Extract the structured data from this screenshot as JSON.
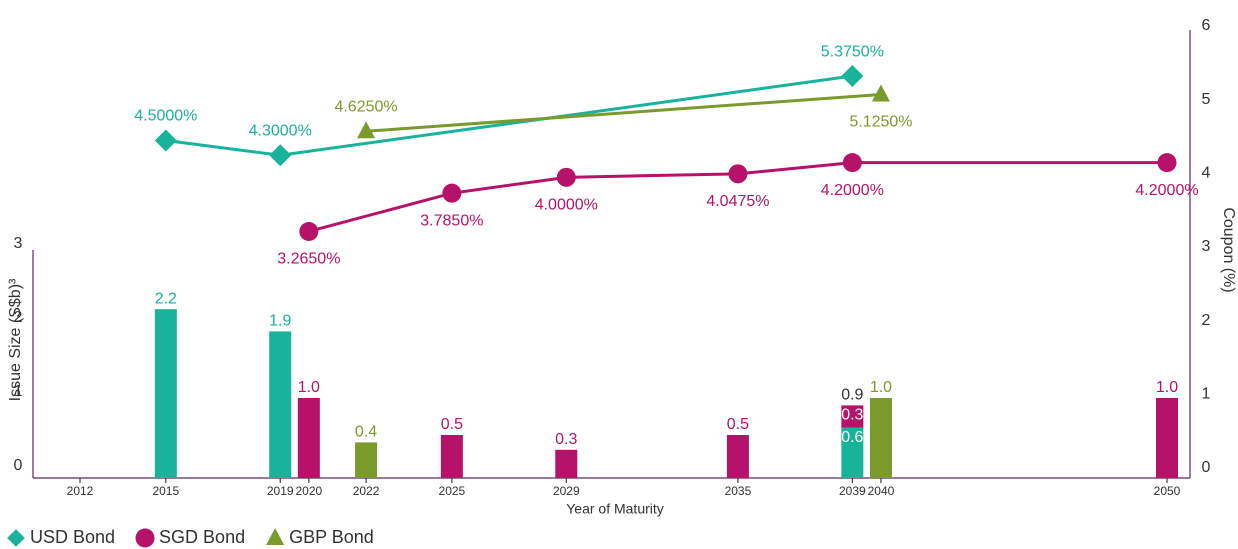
{
  "chart_data": {
    "type": "bar_line",
    "xlabel": "Year of Maturity",
    "ylabel": "Issue Size (S$b)³",
    "y2label": "Coupon (%)",
    "xlim": [
      2012,
      2050
    ],
    "xticks": [
      2012,
      2015,
      2019,
      2020,
      2022,
      2025,
      2029,
      2035,
      2039,
      2040,
      2050
    ],
    "ylim": [
      0,
      3
    ],
    "yticks": [
      0,
      1,
      2,
      3
    ],
    "y2lim": [
      0,
      6
    ],
    "y2ticks": [
      0,
      1,
      2,
      3,
      4,
      5,
      6
    ],
    "series": [
      {
        "name": "USD Bond",
        "color": "#19b29b",
        "marker": "diamond",
        "x": [
          2015,
          2019,
          2039
        ],
        "values": [
          2.2,
          1.9,
          0.6
        ],
        "value_labels": [
          "2.2",
          "1.9",
          "0.6"
        ],
        "coupon": [
          4.5,
          4.3,
          5.375
        ],
        "coupon_labels": [
          "4.5000%",
          "4.3000%",
          "5.3750%"
        ]
      },
      {
        "name": "SGD Bond",
        "color": "#b7126a",
        "marker": "circle",
        "x": [
          2020,
          2025,
          2029,
          2035,
          2039,
          2050
        ],
        "values": [
          1.0,
          0.5,
          0.3,
          0.5,
          0.3,
          1.0
        ],
        "value_labels": [
          "1.0",
          "0.5",
          "0.3",
          "0.5",
          "0.3",
          "1.0"
        ],
        "coupon": [
          3.265,
          3.785,
          4.0,
          4.0475,
          4.2,
          4.2
        ],
        "coupon_labels": [
          "3.2650%",
          "3.7850%",
          "4.0000%",
          "4.0475%",
          "4.2000%",
          "4.2000%"
        ]
      },
      {
        "name": "GBP Bond",
        "color": "#7b9a2c",
        "marker": "triangle",
        "x": [
          2022,
          2040
        ],
        "values": [
          0.4,
          1.0
        ],
        "value_labels": [
          "0.4",
          "1.0"
        ],
        "coupon": [
          4.625,
          5.125
        ],
        "coupon_labels": [
          "4.6250%",
          "5.1250%"
        ]
      }
    ],
    "stack_totals": {
      "x": [
        2039
      ],
      "values": [
        0.9
      ]
    }
  }
}
